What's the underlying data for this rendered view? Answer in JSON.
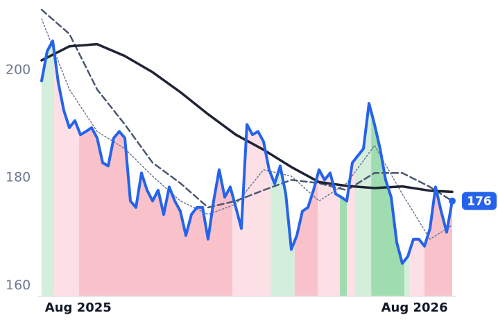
{
  "chart_data": {
    "type": "line",
    "x": [
      0,
      1,
      2,
      3,
      4,
      5,
      6,
      7,
      8,
      9,
      10,
      11,
      12,
      13,
      14,
      15,
      16,
      17,
      18,
      19,
      20,
      21,
      22,
      23,
      24,
      25,
      26,
      27,
      28,
      29,
      30,
      31,
      32,
      33,
      34,
      35,
      36,
      37,
      38,
      39,
      40,
      41,
      42,
      43,
      44,
      45,
      46,
      47,
      48,
      49,
      50,
      51,
      52,
      53,
      54,
      55,
      56,
      57,
      58,
      59,
      60,
      61,
      62,
      63,
      64,
      65,
      66,
      67,
      68,
      69,
      70,
      71,
      72,
      73,
      74
    ],
    "xlim": [
      0,
      74
    ],
    "xticks": [
      {
        "value": 6.6,
        "label": "Aug 2025"
      },
      {
        "value": 67.2,
        "label": "Aug 2026"
      }
    ],
    "ylim": [
      158,
      213
    ],
    "yticks": [
      160,
      180,
      200
    ],
    "regions": [
      {
        "start": 0,
        "end": 2.25,
        "color": "#d3eedb"
      },
      {
        "start": 2.25,
        "end": 6.75,
        "color": "#fde0e5"
      },
      {
        "start": 6.75,
        "end": 34.4,
        "color": "#f9c2cb"
      },
      {
        "start": 34.4,
        "end": 41.25,
        "color": "#fde0e5"
      },
      {
        "start": 41.25,
        "end": 45.6,
        "color": "#d3eedb"
      },
      {
        "start": 45.6,
        "end": 49.75,
        "color": "#f9c2cb"
      },
      {
        "start": 49.75,
        "end": 53.75,
        "color": "#fde0e5"
      },
      {
        "start": 53.75,
        "end": 55,
        "color": "#9fdcb0"
      },
      {
        "start": 55,
        "end": 56.5,
        "color": "#fde0e5"
      },
      {
        "start": 56.5,
        "end": 59.4,
        "color": "#d3eedb"
      },
      {
        "start": 59.4,
        "end": 65.4,
        "color": "#9fdcb0"
      },
      {
        "start": 65.4,
        "end": 66.25,
        "color": "#d3eedb"
      },
      {
        "start": 66.25,
        "end": 69,
        "color": "#fde0e5"
      },
      {
        "start": 69,
        "end": 74,
        "color": "#f9c2cb"
      }
    ],
    "series": [
      {
        "color": "#2563eb",
        "style": "solid",
        "width": 4,
        "values": [
          198,
          203.5,
          205.4,
          197.7,
          192.5,
          189.3,
          190.6,
          188,
          188.6,
          189.3,
          187.4,
          182.8,
          182.2,
          187.4,
          188.6,
          187.4,
          175.7,
          174.5,
          180.9,
          177.7,
          175.7,
          177.7,
          173.2,
          178.3,
          175.7,
          173.8,
          169.3,
          173.2,
          174.5,
          174.5,
          168.6,
          175.7,
          181.5,
          176.4,
          178.3,
          174.5,
          170.6,
          189.9,
          188,
          188.6,
          186.7,
          181.5,
          178.9,
          182.2,
          177,
          166.7,
          169.3,
          173.8,
          174.5,
          177.7,
          181.5,
          179.6,
          180.9,
          177,
          176.4,
          175.7,
          182.8,
          184.1,
          185.4,
          193.8,
          189.9,
          185.4,
          179.6,
          176.4,
          168,
          164.1,
          165.4,
          168.6,
          168.6,
          167.3,
          170.6,
          178.3,
          173.8,
          169.9,
          175.7
        ],
        "value_labels": [
          null,
          null,
          null,
          null,
          null,
          null,
          null,
          null,
          null,
          null,
          null,
          null,
          null,
          null,
          null,
          null,
          null,
          null,
          null,
          null,
          null,
          null,
          null,
          null,
          null,
          null,
          null,
          null,
          null,
          null,
          null,
          null,
          null,
          null,
          null,
          null,
          null,
          null,
          null,
          null,
          null,
          null,
          null,
          null,
          null,
          null,
          null,
          null,
          null,
          null,
          null,
          null,
          null,
          null,
          null,
          null,
          null,
          null,
          null,
          null,
          null,
          null,
          null,
          null,
          null,
          null,
          null,
          null,
          null,
          null,
          null,
          null,
          null,
          null,
          "176"
        ]
      },
      {
        "color": "#1e2433",
        "style": "solid",
        "width": 3.5,
        "x": [
          0,
          5,
          10,
          15,
          20,
          25,
          30,
          35,
          40,
          45,
          50,
          55,
          60,
          65,
          70,
          74
        ],
        "values": [
          201.8,
          204.4,
          204.8,
          202.6,
          199.6,
          195.9,
          191.8,
          188,
          185.2,
          182,
          179.2,
          178.5,
          178.1,
          178.4,
          177.6,
          177.4
        ]
      },
      {
        "color": "#4a5670",
        "style": "dashed",
        "width": 2.5,
        "x": [
          0,
          5,
          10,
          15,
          20,
          25,
          30,
          35,
          40,
          45,
          50,
          55,
          60,
          65,
          70,
          74
        ],
        "values": [
          211.2,
          206.7,
          196.4,
          189.9,
          182.8,
          179,
          174.5,
          175.7,
          177.7,
          179.6,
          179,
          177.7,
          180.9,
          180.9,
          178.3,
          175.7
        ]
      },
      {
        "color": "#6b7690",
        "style": "dotted",
        "width": 1.5,
        "x": [
          0,
          5,
          10,
          15,
          20,
          25,
          30,
          35,
          40,
          45,
          50,
          55,
          60,
          65,
          70,
          74
        ],
        "values": [
          209.5,
          196.4,
          188.6,
          185.4,
          180.3,
          175.7,
          173.2,
          175.1,
          181.5,
          180.3,
          175.7,
          179,
          186,
          177,
          168.6,
          171.2
        ]
      }
    ]
  }
}
